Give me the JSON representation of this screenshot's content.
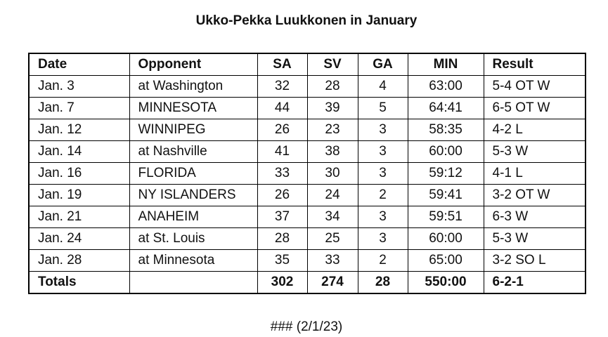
{
  "title": "Ukko-Pekka Luukkonen in January",
  "table": {
    "headers": [
      "Date",
      "Opponent",
      "SA",
      "SV",
      "GA",
      "MIN",
      "Result"
    ],
    "rows": [
      [
        "Jan. 3",
        "at Washington",
        "32",
        "28",
        "4",
        "63:00",
        "5-4 OT W"
      ],
      [
        "Jan. 7",
        "MINNESOTA",
        "44",
        "39",
        "5",
        "64:41",
        "6-5 OT W"
      ],
      [
        "Jan. 12",
        "WINNIPEG",
        "26",
        "23",
        "3",
        "58:35",
        "4-2 L"
      ],
      [
        "Jan. 14",
        "at Nashville",
        "41",
        "38",
        "3",
        "60:00",
        "5-3 W"
      ],
      [
        "Jan. 16",
        "FLORIDA",
        "33",
        "30",
        "3",
        "59:12",
        "4-1 L"
      ],
      [
        "Jan. 19",
        "NY ISLANDERS",
        "26",
        "24",
        "2",
        "59:41",
        "3-2 OT W"
      ],
      [
        "Jan. 21",
        "ANAHEIM",
        "37",
        "34",
        "3",
        "59:51",
        "6-3 W"
      ],
      [
        "Jan. 24",
        "at St. Louis",
        "28",
        "25",
        "3",
        "60:00",
        "5-3 W"
      ],
      [
        "Jan. 28",
        "at Minnesota",
        "35",
        "33",
        "2",
        "65:00",
        "3-2 SO L"
      ]
    ],
    "totals": [
      "Totals",
      "",
      "302",
      "274",
      "28",
      "550:00",
      "6-2-1"
    ]
  },
  "footer": "### (2/1/23)"
}
